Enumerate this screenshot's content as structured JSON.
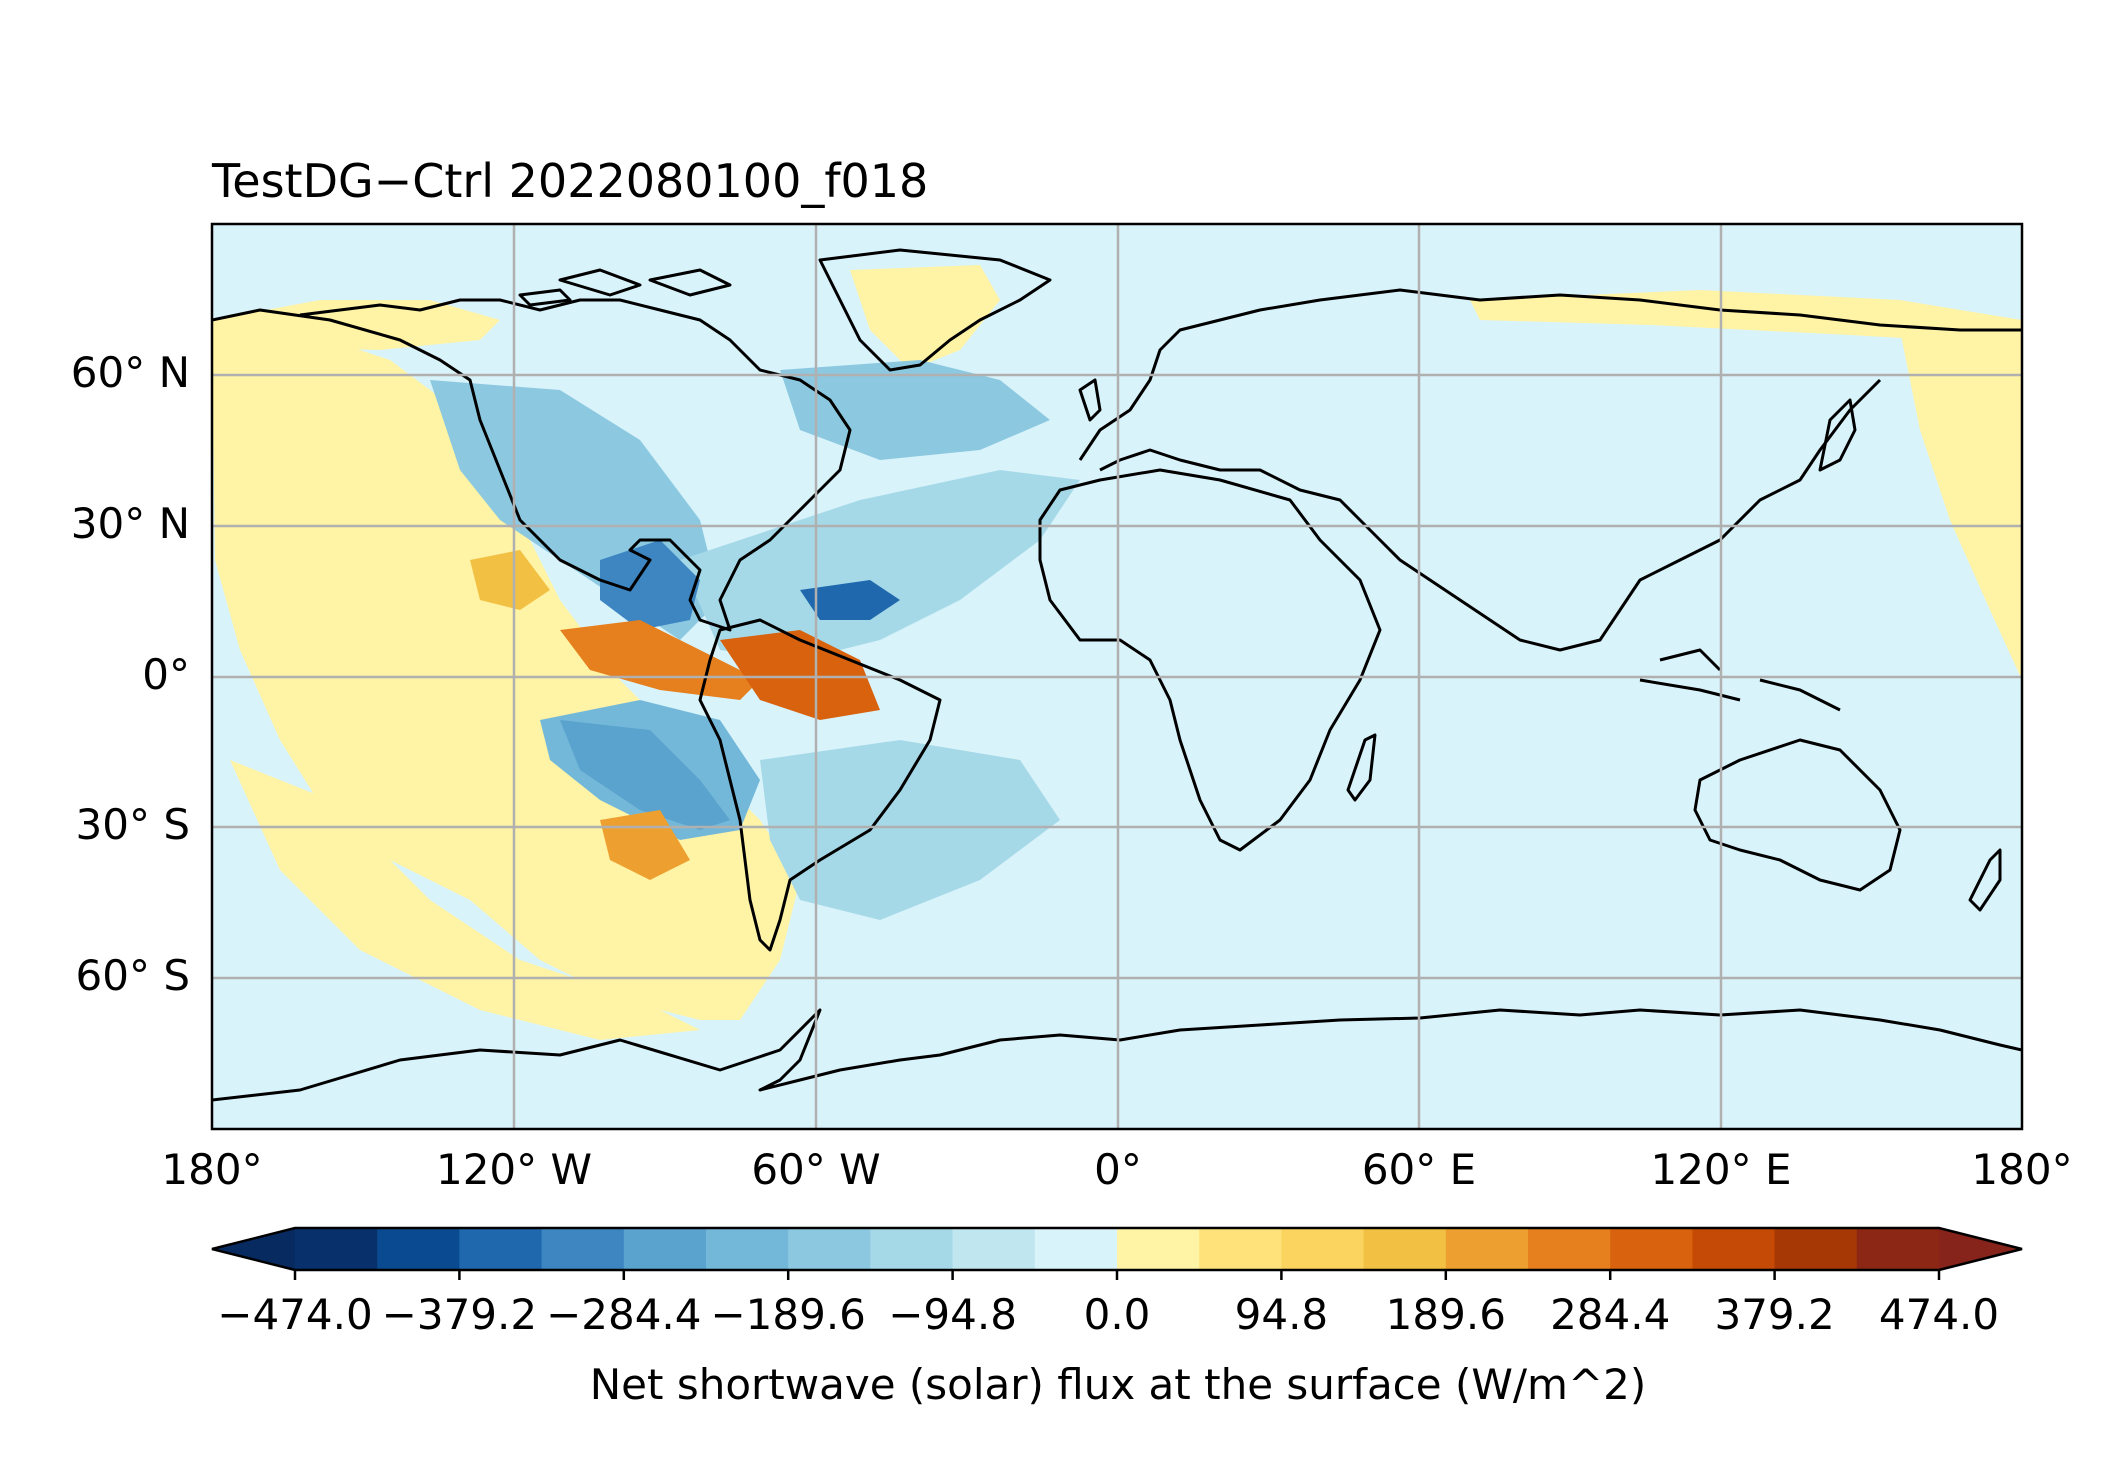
{
  "map": {
    "title": "TestDG−Ctrl 2022080100_f018",
    "projection": "PlateCarree",
    "extent": {
      "lon": [
        -180,
        180
      ],
      "lat": [
        -90,
        90
      ]
    },
    "background_color": "#d9f3fb",
    "lat_labels": [
      "60° N",
      "30° N",
      "0°",
      "30° S",
      "60° S"
    ],
    "lon_labels": [
      "180°",
      "120° W",
      "60° W",
      "0°",
      "60° E",
      "120° E",
      "180°"
    ],
    "gridlines": true
  },
  "colorbar": {
    "label": "Net shortwave (solar) flux at the surface (W/m^2)",
    "tick_labels": [
      "−474.0",
      "−379.2",
      "−284.4",
      "−189.6",
      "−94.8",
      "0.0",
      "94.8",
      "189.6",
      "284.4",
      "379.2",
      "474.0"
    ],
    "levels": [
      -474.0,
      -379.2,
      -284.4,
      -189.6,
      -94.8,
      0.0,
      94.8,
      189.6,
      284.4,
      379.2,
      474.0
    ],
    "extend": "both",
    "colors": [
      "#08306b",
      "#0a4a90",
      "#1f68ad",
      "#3d86c2",
      "#5aa3ce",
      "#73b8d9",
      "#8cc9e0",
      "#a6d9e8",
      "#c0e6f0",
      "#d9f3fb",
      "#fff3a6",
      "#ffe37a",
      "#fad45e",
      "#f2c144",
      "#eda030",
      "#e67f1d",
      "#d8620e",
      "#c44a05",
      "#a63806",
      "#8c2716"
    ],
    "under_color": "#072a60",
    "over_color": "#86231b"
  }
}
